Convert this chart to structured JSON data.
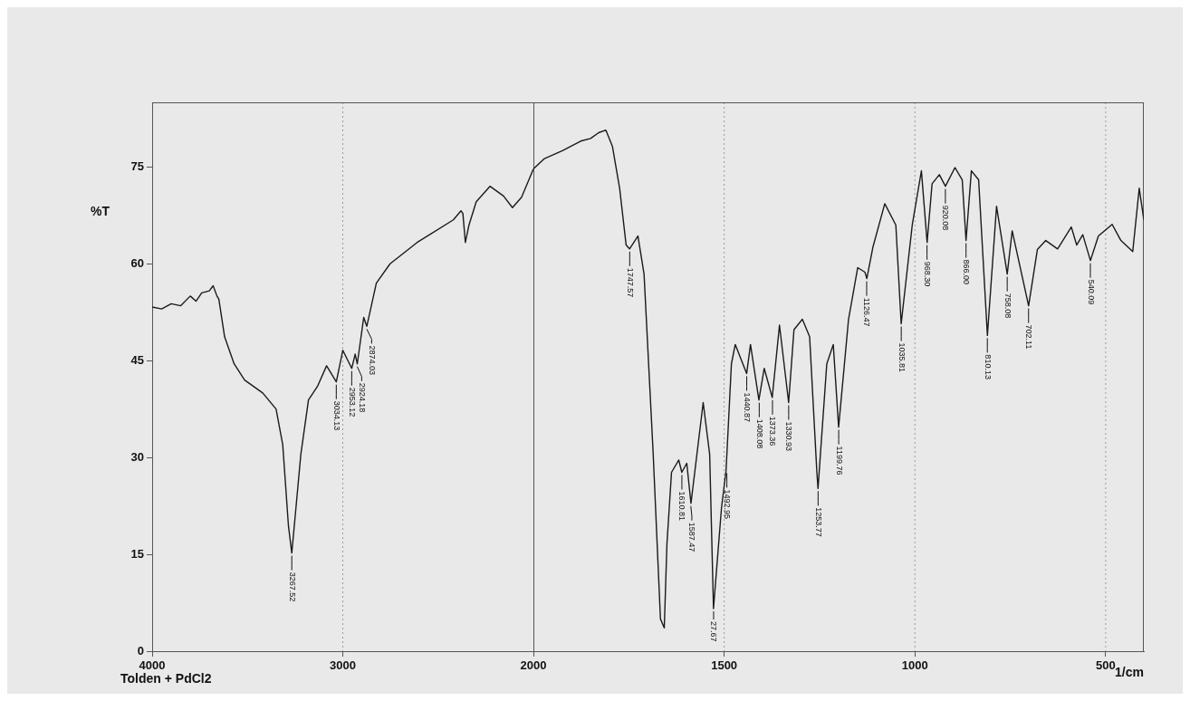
{
  "chart_data": [
    {
      "type": "line",
      "ylabel": "%T",
      "color": "#1a1a1a",
      "line_style": "solid",
      "marker": "none",
      "grid": "x",
      "legend": false,
      "xlim": [
        4000,
        2000
      ],
      "xticks": [
        4000,
        3000
      ],
      "ylim": [
        0,
        85
      ],
      "yticks": [
        0,
        15,
        30,
        45,
        60,
        75
      ],
      "x": [
        4000,
        3950,
        3900,
        3850,
        3800,
        3770,
        3740,
        3700,
        3680,
        3660,
        3650,
        3620,
        3570,
        3515,
        3420,
        3350,
        3315,
        3285,
        3267.52,
        3250,
        3220,
        3180,
        3133,
        3085,
        3034,
        3000,
        2953,
        2935,
        2924,
        2890,
        2874,
        2824,
        2752,
        2610,
        2420,
        2380,
        2370,
        2357,
        2338,
        2300,
        2228,
        2157,
        2110,
        2062,
        2000
      ],
      "values": [
        53.3,
        53,
        53.8,
        53.5,
        55,
        54.2,
        55.5,
        55.8,
        56.6,
        55,
        54.5,
        48.7,
        44.5,
        42,
        40,
        37.5,
        32,
        19.4,
        15.2,
        20.8,
        30.5,
        38.9,
        41,
        44.2,
        41.7,
        46.6,
        43.8,
        46,
        44.5,
        51.7,
        50.3,
        57,
        60,
        63.3,
        66.8,
        68.2,
        67.8,
        63.3,
        66,
        69.6,
        72,
        70.5,
        68.7,
        70.3,
        74.7
      ],
      "annotations": [
        "Tolden + PdCl2",
        {
          "text": "3267.52",
          "x": 3267.52,
          "y": 15.2
        },
        {
          "text": "3034.13",
          "x": 3034.13,
          "y": 41.7
        },
        {
          "text": "2953.12",
          "x": 2953.12,
          "y": 43.8
        },
        {
          "text": "2924.18",
          "x": 2924.18,
          "y": 44.5
        },
        {
          "text": "2874.03",
          "x": 2874.03,
          "y": 50.3
        }
      ]
    },
    {
      "type": "line",
      "xlabel": "1/cm",
      "color": "#1a1a1a",
      "line_style": "solid",
      "marker": "none",
      "grid": "x",
      "legend": false,
      "tick_labels": "x",
      "xlim": [
        2000,
        400
      ],
      "xticks": [
        2000,
        1500,
        1000,
        500
      ],
      "ylim": [
        0,
        85
      ],
      "yticks": [
        0,
        15,
        30,
        45,
        60,
        75
      ],
      "x": [
        2000,
        1971,
        1924,
        1876,
        1850,
        1829,
        1810,
        1793,
        1774,
        1757,
        1748,
        1726,
        1710,
        1686,
        1667,
        1657,
        1650,
        1638,
        1619,
        1611,
        1598,
        1587,
        1555,
        1538,
        1528,
        1507,
        1495,
        1481,
        1471,
        1441,
        1431,
        1409,
        1395,
        1374,
        1355,
        1331,
        1317,
        1295,
        1276,
        1257,
        1254,
        1231,
        1214,
        1200,
        1174,
        1150,
        1131,
        1126,
        1110,
        1079,
        1050,
        1036,
        1007,
        983,
        968,
        955,
        936,
        920,
        895,
        876,
        866,
        852,
        833,
        810,
        786,
        758,
        745,
        702,
        679,
        657,
        626,
        590,
        576,
        560,
        540,
        519,
        483,
        460,
        429,
        412,
        400
      ],
      "values": [
        74.7,
        76.3,
        77.5,
        79,
        79.4,
        80.3,
        80.7,
        78.2,
        71.7,
        62.9,
        62.3,
        64.3,
        58.4,
        30.5,
        5,
        3.6,
        16.6,
        27.7,
        29.6,
        27.7,
        29.1,
        22.9,
        38.5,
        30.5,
        6.6,
        22.2,
        28,
        44.5,
        47.5,
        43,
        47.5,
        38.9,
        43.8,
        39.3,
        50.5,
        38.5,
        49.8,
        51.4,
        48.7,
        27.7,
        25.2,
        44.5,
        47.5,
        34.7,
        51.4,
        59.4,
        58.7,
        57.7,
        62.6,
        69.3,
        66,
        50.7,
        66,
        74.4,
        63.3,
        72.4,
        73.8,
        72,
        74.9,
        73,
        63.6,
        74.4,
        73,
        48.9,
        68.9,
        58.4,
        65.1,
        53.5,
        62.2,
        63.6,
        62.3,
        65.7,
        62.9,
        64.5,
        60.5,
        64.3,
        66.1,
        63.6,
        61.9,
        71.7,
        66.8
      ],
      "annotations": [
        {
          "text": "1747.57",
          "x": 1747.57,
          "y": 62.3
        },
        {
          "text": "1610.81",
          "x": 1610.81,
          "y": 27.7
        },
        {
          "text": "1587.47",
          "x": 1587.47,
          "y": 22.9
        },
        {
          "text": "27.67",
          "x": 1527.67,
          "y": 6.6
        },
        {
          "text": "1492.95",
          "x": 1492.95,
          "y": 28
        },
        {
          "text": "1440.87",
          "x": 1440.87,
          "y": 43
        },
        {
          "text": "1408.08",
          "x": 1408.08,
          "y": 38.9
        },
        {
          "text": "1373.36",
          "x": 1373.36,
          "y": 39.3
        },
        {
          "text": "1330.93",
          "x": 1330.93,
          "y": 38.5
        },
        {
          "text": "1253.77",
          "x": 1253.77,
          "y": 25.2
        },
        {
          "text": "1199.76",
          "x": 1199.76,
          "y": 34.7
        },
        {
          "text": "1126.47",
          "x": 1126.47,
          "y": 57.7
        },
        {
          "text": "1035.81",
          "x": 1035.81,
          "y": 50.7
        },
        {
          "text": "968.30",
          "x": 968.3,
          "y": 63.3
        },
        {
          "text": "920.08",
          "x": 920.08,
          "y": 72
        },
        {
          "text": "866.00",
          "x": 866,
          "y": 63.6
        },
        {
          "text": "810.13",
          "x": 810.13,
          "y": 48.9
        },
        {
          "text": "758.08",
          "x": 758.08,
          "y": 58.4
        },
        {
          "text": "702.11",
          "x": 702.11,
          "y": 53.5
        },
        {
          "text": "540.09",
          "x": 540.09,
          "y": 60.5
        }
      ]
    }
  ]
}
